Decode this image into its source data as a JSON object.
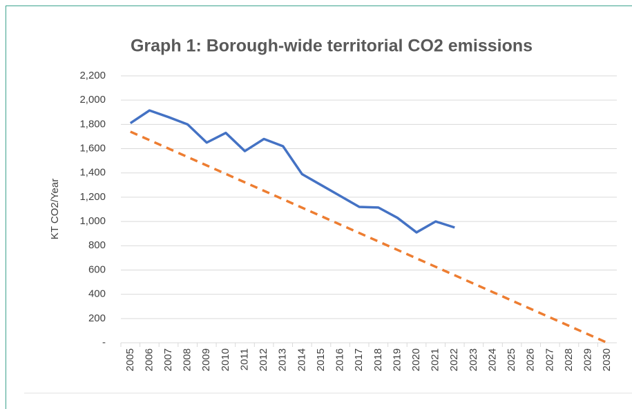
{
  "chart_data": {
    "type": "line",
    "title": "Graph 1: Borough-wide territorial CO2 emissions",
    "y_label": "KT CO2/Year",
    "categories": [
      "2005",
      "2006",
      "2007",
      "2008",
      "2009",
      "2010",
      "2011",
      "2012",
      "2013",
      "2014",
      "2015",
      "2016",
      "2017",
      "2018",
      "2019",
      "2020",
      "2021",
      "2022",
      "2023",
      "2024",
      "2025",
      "2026",
      "2027",
      "2028",
      "2029",
      "2030"
    ],
    "series": [
      {
        "color": "#4472c4",
        "dash": false,
        "values": [
          1810,
          1915,
          1860,
          1800,
          1650,
          1730,
          1580,
          1680,
          1620,
          1390,
          1300,
          1210,
          1120,
          1115,
          1030,
          910,
          1000,
          950,
          null,
          null,
          null,
          null,
          null,
          null,
          null,
          null
        ]
      },
      {
        "color": "#ed7d31",
        "dash": true,
        "values": [
          1740,
          1670.4,
          1600.8,
          1531.2,
          1461.6,
          1392,
          1322.4,
          1252.8,
          1183.2,
          1113.6,
          1044,
          974.4,
          904.8,
          835.2,
          765.6,
          696,
          626.4,
          556.8,
          487.2,
          417.6,
          348,
          278.4,
          208.8,
          139.2,
          69.6,
          0
        ]
      }
    ],
    "ylim": [
      0,
      2200
    ],
    "yticks": [
      {
        "value": 0,
        "label": "-"
      },
      200,
      400,
      600,
      800,
      {
        "value": 1000,
        "label": "1,000"
      },
      {
        "value": 1200,
        "label": "1,200"
      },
      {
        "value": 1400,
        "label": "1,400"
      },
      {
        "value": 1600,
        "label": "1,600"
      },
      {
        "value": 1800,
        "label": "1,800"
      },
      {
        "value": 2000,
        "label": "2,000"
      },
      {
        "value": 2200,
        "label": "2,200"
      }
    ],
    "grid": true
  }
}
